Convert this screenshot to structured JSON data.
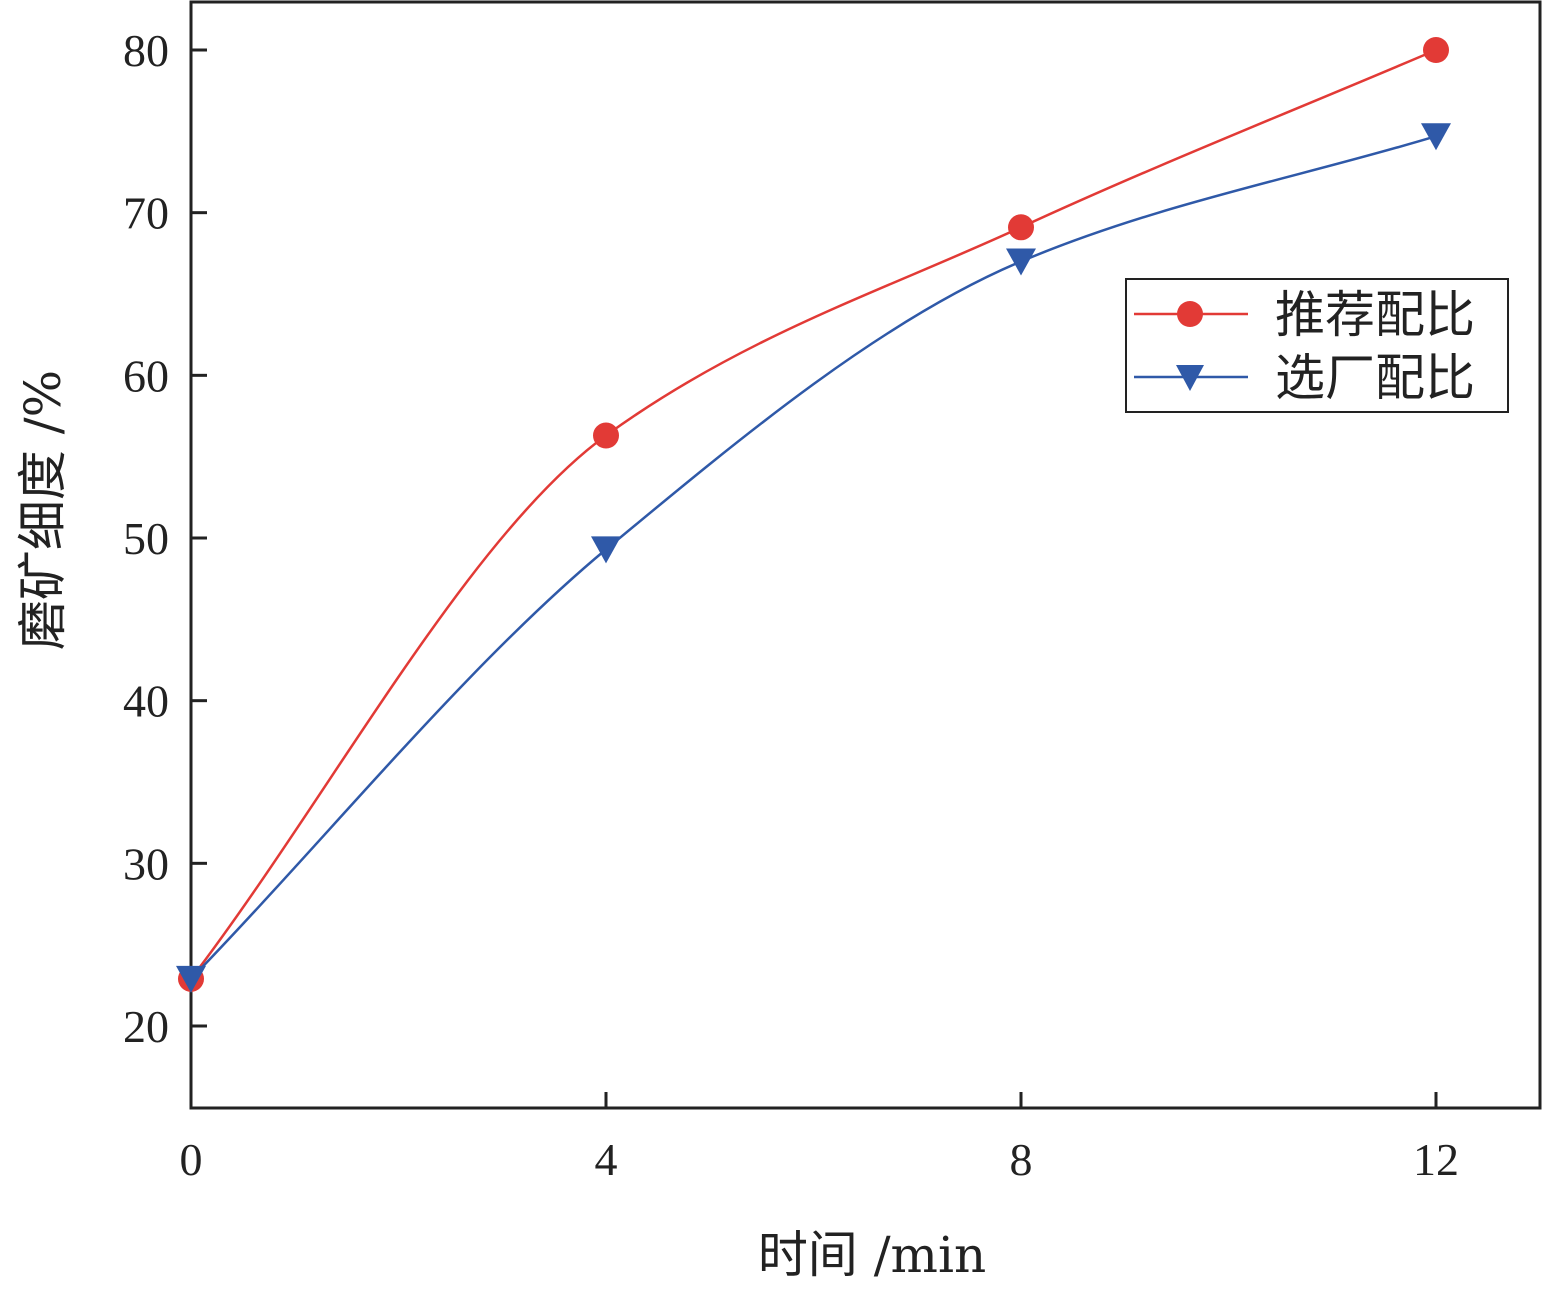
{
  "chart_data": {
    "type": "line",
    "x": [
      0,
      4,
      8,
      12
    ],
    "series": [
      {
        "name": "推荐配比",
        "values": [
          22.9,
          56.3,
          69.1,
          80.0
        ],
        "color": "#e23a36",
        "marker": "circle"
      },
      {
        "name": "选厂配比",
        "values": [
          22.9,
          49.3,
          67.0,
          74.7
        ],
        "color": "#2f59a8",
        "marker": "triangle-down"
      }
    ],
    "xlabel": "时间 /min",
    "ylabel": "磨矿细度 /%",
    "xlim": [
      0,
      13
    ],
    "ylim": [
      15,
      83
    ],
    "xticks": [
      "0",
      "4",
      "8",
      "12"
    ],
    "yticks": [
      "20",
      "30",
      "40",
      "50",
      "60",
      "70",
      "80"
    ],
    "smooth": true,
    "grid": false,
    "legend_position": "upper-right"
  }
}
